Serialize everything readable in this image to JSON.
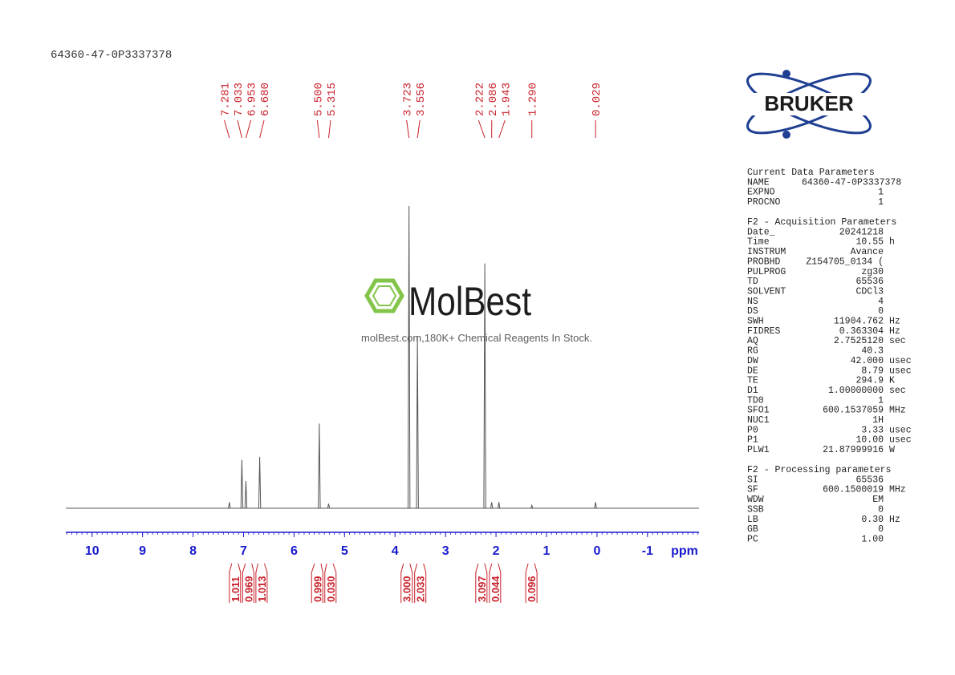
{
  "chart_data": {
    "type": "nmr",
    "title": "64360-47-0P3337378",
    "x": [
      7.281,
      7.033,
      6.953,
      {
        "value": 6.68,
        "label": "6.680"
      },
      {
        "value": 5.5,
        "label": "5.500"
      },
      5.315,
      3.723,
      3.556,
      2.222,
      2.086,
      1.943,
      {
        "value": 1.29,
        "label": "1.290"
      },
      0.029
    ],
    "values": [
      2,
      16,
      9,
      17,
      28,
      1.5,
      100,
      57,
      81,
      2,
      2,
      1,
      2
    ],
    "color": "#555555",
    "label_color": "#c8202a",
    "axis_color": "#1a1acd",
    "xlim": [
      10.52,
      -2.02
    ],
    "ylim": [
      0,
      100
    ],
    "xticks": [
      10,
      9,
      8,
      7,
      6,
      5,
      4,
      3,
      2,
      1,
      0,
      -1
    ],
    "minor_ticks_per_major": 10,
    "x_label": "ppm",
    "integrals": {
      "x": [
        7.17,
        6.9,
        6.65,
        5.53,
        5.29,
        3.77,
        3.5,
        2.29,
        2.02,
        1.3
      ],
      "values": [
        1.011,
        0.969,
        1.013,
        0.999,
        0.03,
        3,
        2.033,
        3.097,
        0.044,
        0.096
      ],
      "value_labels": [
        "1.011",
        "0.969",
        "1.013",
        "0.999",
        "0.030",
        "3.000",
        "2.033",
        "3.097",
        "0.044",
        "0.096"
      ]
    }
  },
  "watermark": {
    "name": "MolBest",
    "tagline": "molBest.com,180K+ Chemical Reagents In Stock."
  },
  "logo": "BRUKER",
  "parameters": [
    {
      "title": "Current Data Parameters",
      "rows": [
        [
          "NAME",
          "64360-47-0P3337378"
        ],
        [
          "EXPNO",
          "1"
        ],
        [
          "PROCNO",
          "1"
        ]
      ]
    },
    {
      "title": "F2 - Acquisition Parameters",
      "rows": [
        [
          "Date_",
          "20241218"
        ],
        [
          "Time",
          "10.55",
          "h"
        ],
        [
          "INSTRUM",
          "Avance"
        ],
        [
          "PROBHD",
          "Z154705_0134 ("
        ],
        [
          "PULPROG",
          "zg30"
        ],
        [
          "TD",
          "65536"
        ],
        [
          "SOLVENT",
          "CDCl3"
        ],
        [
          "NS",
          "4"
        ],
        [
          "DS",
          "0"
        ],
        [
          "SWH",
          "11904.762",
          "Hz"
        ],
        [
          "FIDRES",
          "0.363304",
          "Hz"
        ],
        [
          "AQ",
          "2.7525120",
          "sec"
        ],
        [
          "RG",
          "40.3"
        ],
        [
          "DW",
          "42.000",
          "usec"
        ],
        [
          "DE",
          "8.79",
          "usec"
        ],
        [
          "TE",
          "294.9",
          "K"
        ],
        [
          "D1",
          "1.00000000",
          "sec"
        ],
        [
          "TD0",
          "1"
        ],
        [
          "SFO1",
          "600.1537059",
          "MHz"
        ],
        [
          "NUC1",
          "1H"
        ],
        [
          "P0",
          "3.33",
          "usec"
        ],
        [
          "P1",
          "10.00",
          "usec"
        ],
        [
          "PLW1",
          "21.87999916",
          "W"
        ]
      ]
    },
    {
      "title": "F2 - Processing parameters",
      "rows": [
        [
          "SI",
          "65536"
        ],
        [
          "SF",
          "600.1500019",
          "MHz"
        ],
        [
          "WDW",
          "EM"
        ],
        [
          "SSB",
          "0"
        ],
        [
          "LB",
          "0.30",
          "Hz"
        ],
        [
          "GB",
          "0"
        ],
        [
          "PC",
          "1.00"
        ]
      ]
    }
  ]
}
